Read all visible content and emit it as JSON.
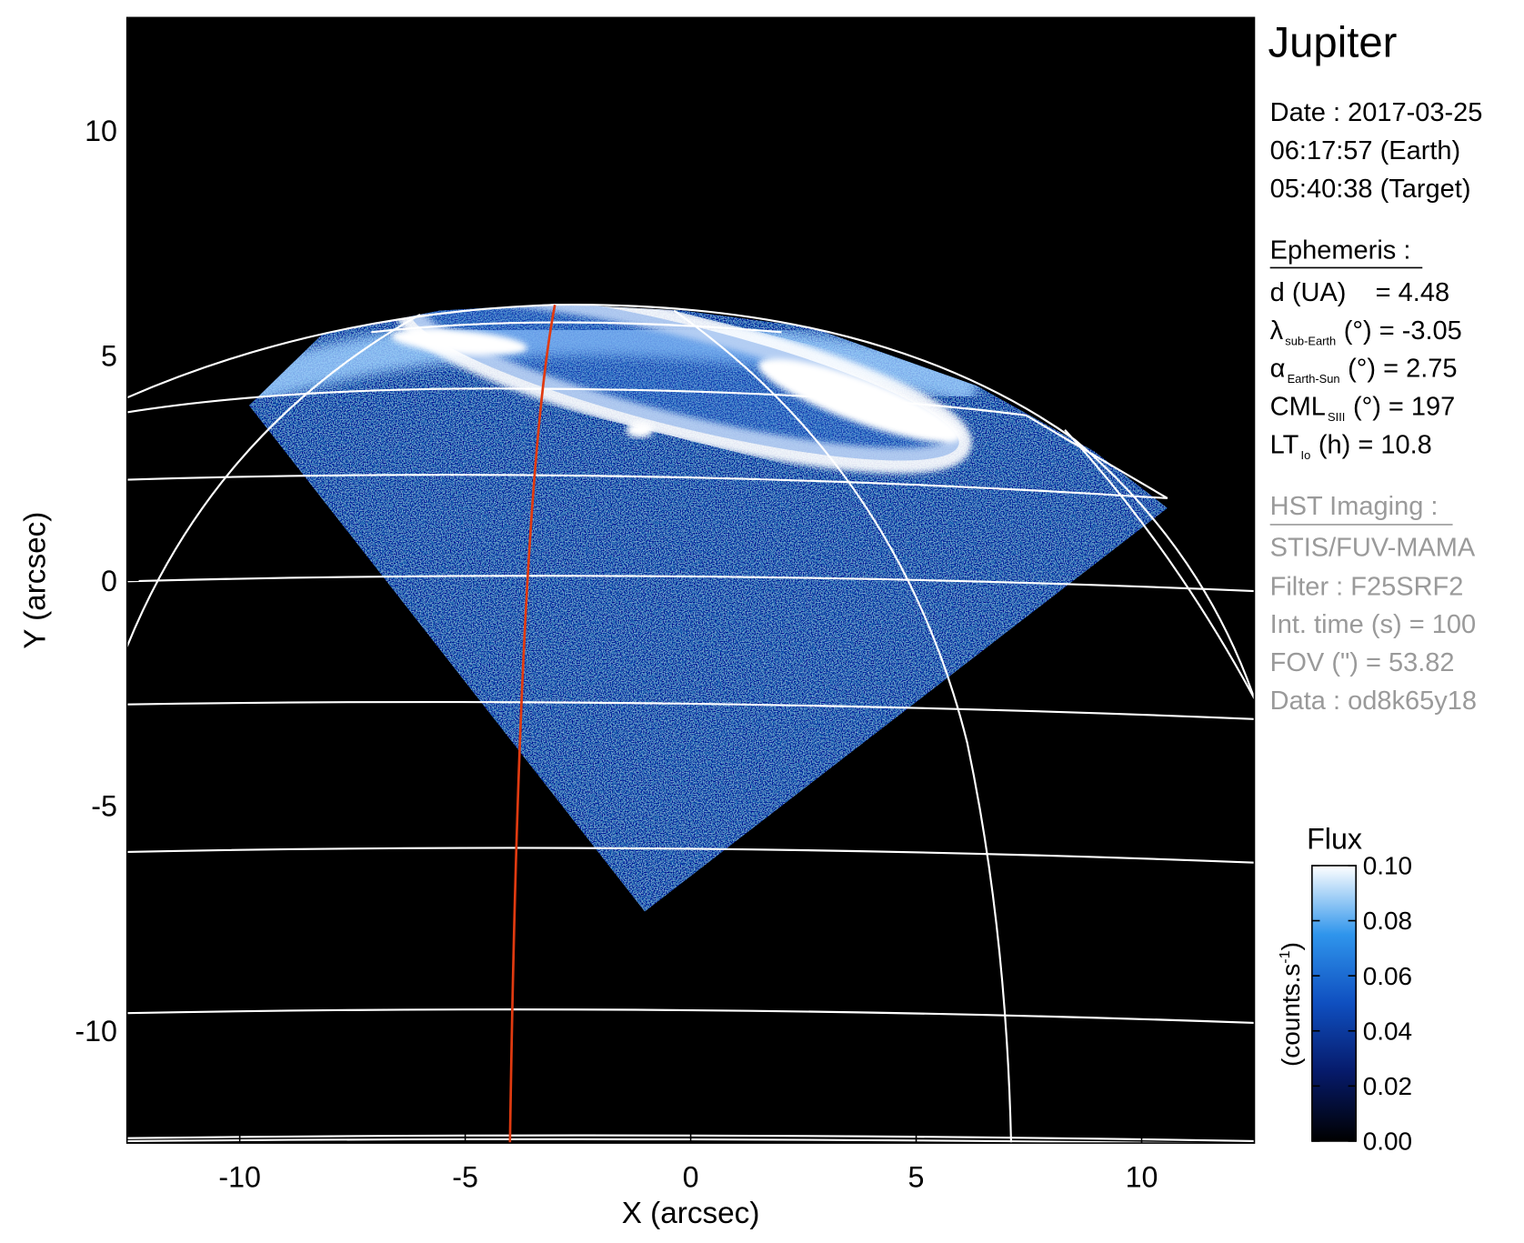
{
  "chart_data": {
    "type": "image",
    "title": "Jupiter",
    "xlabel": "X (arcsec)",
    "ylabel": "Y (arcsec)",
    "xlim": [
      -12.5,
      12.5
    ],
    "ylim": [
      -12.5,
      12.5
    ],
    "xticks": [
      -10,
      -5,
      0,
      5,
      10
    ],
    "yticks": [
      -10,
      -5,
      0,
      5,
      10
    ],
    "colorbar": {
      "title": "Flux",
      "label": {
        "text": "(counts.s",
        "superscript": "-1",
        "close": ")"
      },
      "lim": [
        0,
        0.1
      ],
      "ticks": [
        {
          "value": 0,
          "label": "0.00"
        },
        {
          "value": 0.02,
          "label": "0.02"
        },
        {
          "value": 0.04,
          "label": "0.04"
        },
        {
          "value": 0.06,
          "label": "0.06"
        },
        {
          "value": 0.08,
          "label": "0.08"
        },
        {
          "value": 0.1,
          "label": "0.10"
        }
      ],
      "colors": [
        "#000000",
        "#061a6a",
        "#0f4fc0",
        "#2f95ec",
        "#ffffff"
      ]
    }
  },
  "info": {
    "date": "Date : 2017-03-25",
    "time_earth": "06:17:57 (Earth)",
    "time_target": "05:40:38 (Target)",
    "ephemeris": {
      "heading": "Ephemeris :",
      "distance": "d (UA)    = 4.48",
      "latitude": {
        "symbol": "λ",
        "subscript": "sub-Earth",
        "text": "(°) = -3.05"
      },
      "phase": {
        "symbol": "α",
        "subscript": "Earth-Sun",
        "text": "(°) = 2.75"
      },
      "cml": {
        "symbol": "CML",
        "subscript": "SIII",
        "text": "(°) = 197"
      },
      "lt": {
        "symbol": "LT",
        "subscript": "Io",
        "text": "(h) = 10.8"
      }
    },
    "hst": {
      "heading": "HST Imaging :",
      "instrument": "STIS/FUV-MAMA",
      "filter": "Filter : F25SRF2",
      "int_time": "Int. time (s) = 100",
      "fov": "FOV (\") = 53.82",
      "data": "Data : od8k65y18"
    }
  }
}
